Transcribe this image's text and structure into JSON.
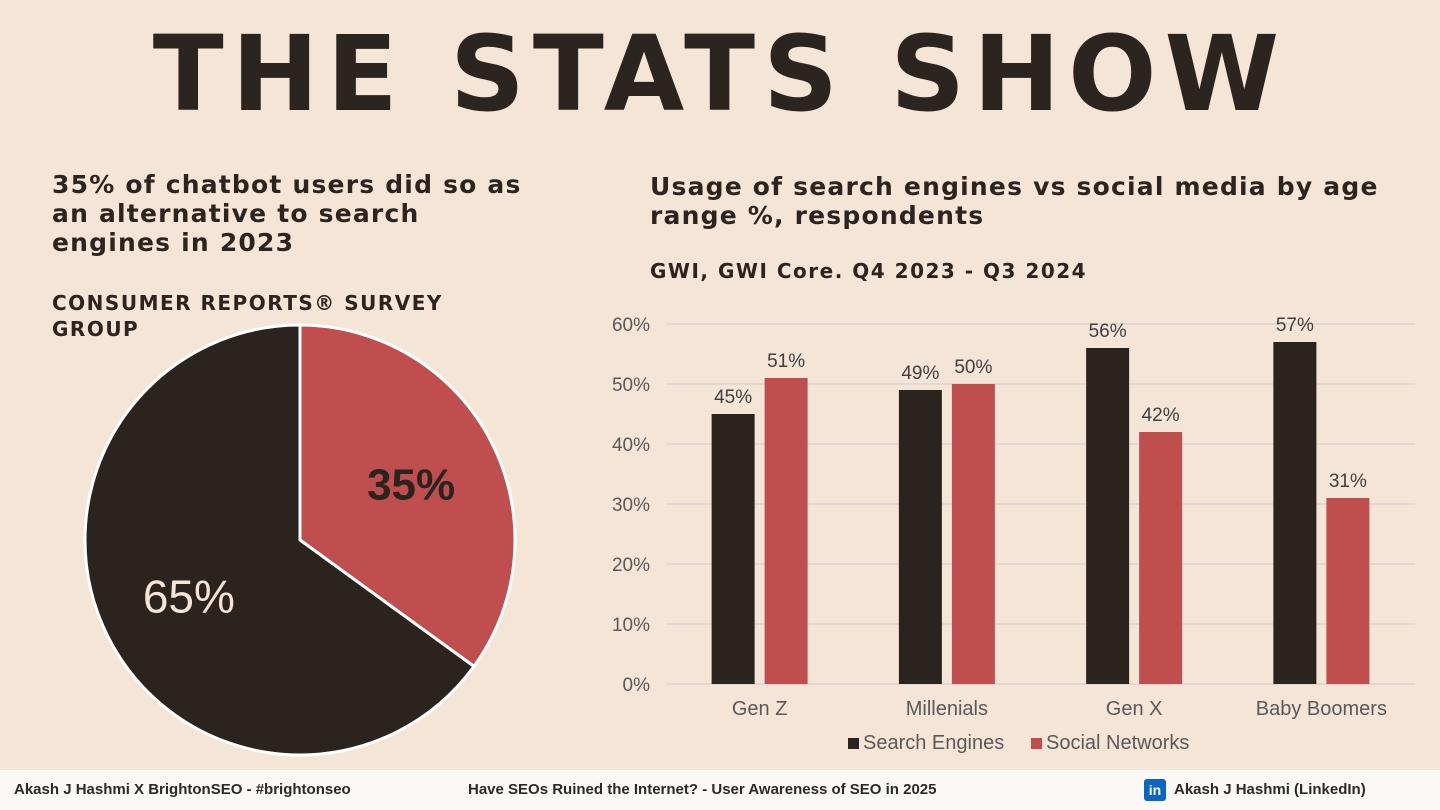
{
  "title": "THE STATS SHOW",
  "left_panel": {
    "heading": "35% of chatbot users did so as an alternative to search engines in 2023",
    "source": "Consumer Reports® Survey Group"
  },
  "right_panel": {
    "heading": "Usage of search engines vs social media by age range %, respondents",
    "source": "GWI, GWI Core. Q4 2023 - Q3 2024"
  },
  "colors": {
    "dark": "#2b231e",
    "red": "#c04e4f",
    "background": "#f4e5d7"
  },
  "chart_data": [
    {
      "type": "pie",
      "title": "35% of chatbot users did so as an alternative to search engines in 2023",
      "slices": [
        {
          "label": "35%",
          "value": 35,
          "color": "#c04e4f"
        },
        {
          "label": "65%",
          "value": 65,
          "color": "#2b231e"
        }
      ]
    },
    {
      "type": "bar",
      "title": "Usage of search engines vs social media by age range %, respondents",
      "categories": [
        "Gen Z",
        "Millenials",
        "Gen X",
        "Baby Boomers"
      ],
      "series": [
        {
          "name": "Search Engines",
          "values": [
            45,
            49,
            56,
            57
          ],
          "color": "#2b231e"
        },
        {
          "name": "Social Networks",
          "values": [
            51,
            50,
            42,
            31
          ],
          "color": "#c04e4f"
        }
      ],
      "ylim": [
        0,
        60
      ],
      "yticks": [
        "0%",
        "10%",
        "20%",
        "30%",
        "40%",
        "50%",
        "60%"
      ],
      "value_suffix": "%",
      "grid": true,
      "legend": "bottom"
    }
  ],
  "footer": {
    "left": "Akash J Hashmi X BrightonSEO - #brightonseo",
    "center": "Have SEOs Ruined the Internet? - User Awareness of SEO in 2025",
    "linkedin_icon": "in",
    "right": "Akash J Hashmi (LinkedIn)"
  }
}
